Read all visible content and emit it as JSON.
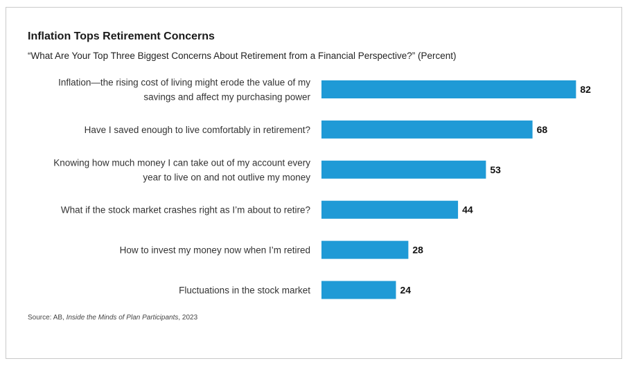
{
  "title": "Inflation Tops Retirement Concerns",
  "subtitle": "“What Are Your Top Three Biggest Concerns About Retirement from a Financial Perspective?” (Percent)",
  "source": {
    "prefix": "Source: AB, ",
    "publication": "Inside the Minds of Plan Participants",
    "suffix": ", 2023"
  },
  "colors": {
    "bar": "#1f9ad6",
    "label": "#333333",
    "value": "#111111"
  },
  "chart_data": {
    "type": "bar",
    "orientation": "horizontal",
    "categories": [
      [
        "Inflation—the rising cost of living might erode the value of my",
        "savings and affect my purchasing power"
      ],
      [
        "Have I saved enough to live comfortably in retirement?"
      ],
      [
        "Knowing how much money I can take out of my account every",
        "year to live on and not outlive my money"
      ],
      [
        "What if the stock market crashes right as I’m about to retire?"
      ],
      [
        "How to invest my money now when I’m retired"
      ],
      [
        "Fluctuations in the stock market"
      ]
    ],
    "values": [
      82,
      68,
      53,
      44,
      28,
      24
    ],
    "xlim": [
      0,
      100
    ],
    "grid": false,
    "legend": "none"
  }
}
